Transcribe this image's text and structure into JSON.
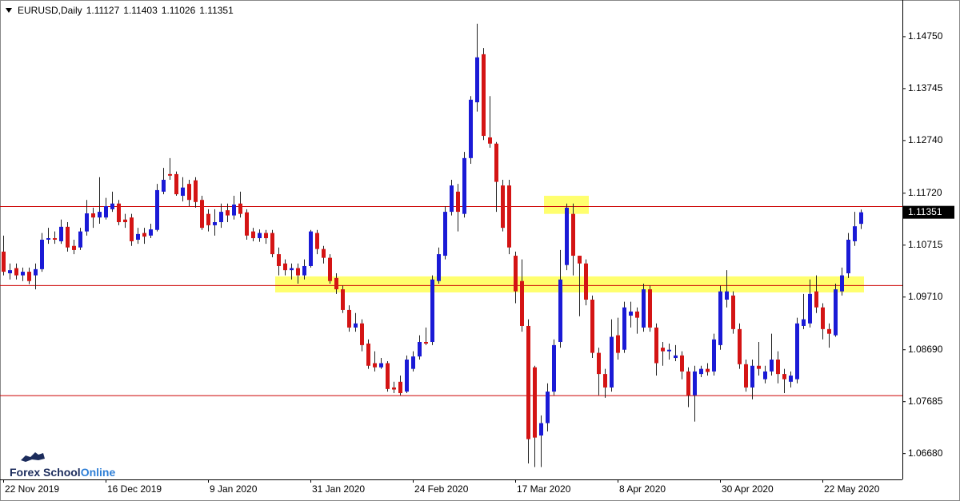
{
  "chart_data": {
    "type": "candlestick",
    "title": "EURUSD,Daily",
    "categories": [
      "22 Nov 2019",
      null,
      null,
      null,
      null,
      null,
      null,
      null,
      null,
      null,
      null,
      null,
      null,
      null,
      null,
      null,
      "16 Dec 2019",
      null,
      null,
      null,
      null,
      null,
      null,
      null,
      null,
      null,
      null,
      null,
      null,
      null,
      null,
      null,
      "9 Jan 2020",
      null,
      null,
      null,
      null,
      null,
      null,
      null,
      null,
      null,
      null,
      null,
      null,
      null,
      null,
      null,
      "31 Jan 2020",
      null,
      null,
      null,
      null,
      null,
      null,
      null,
      null,
      null,
      null,
      null,
      null,
      null,
      null,
      null,
      "24 Feb 2020",
      null,
      null,
      null,
      null,
      null,
      null,
      null,
      null,
      null,
      null,
      null,
      null,
      null,
      null,
      null,
      "17 Mar 2020",
      null,
      null,
      null,
      null,
      null,
      null,
      null,
      null,
      null,
      null,
      null,
      null,
      null,
      null,
      null,
      "8 Apr 2020",
      null,
      null,
      null,
      null,
      null,
      null,
      null,
      null,
      null,
      null,
      null,
      null,
      null,
      null,
      null,
      "30 Apr 2020",
      null,
      null,
      null,
      null,
      null,
      null,
      null,
      null,
      null,
      null,
      null,
      null,
      null,
      null,
      null,
      "22 May 2020",
      null,
      null,
      null,
      null,
      null,
      null
    ],
    "open": [
      1.1059,
      1.1017,
      1.1027,
      1.1013,
      1.102,
      1.1013,
      1.1025,
      1.1082,
      1.1085,
      1.1079,
      1.1107,
      1.107,
      1.1067,
      1.1098,
      1.1133,
      1.1125,
      1.1125,
      1.1141,
      1.1152,
      1.1121,
      1.1125,
      1.1082,
      1.1095,
      1.109,
      1.1101,
      1.1175,
      1.1209,
      1.1209,
      1.1167,
      1.119,
      1.1197,
      1.1159,
      1.1132,
      1.111,
      1.1116,
      1.1139,
      1.1129,
      1.1152,
      1.1135,
      1.1098,
      1.1085,
      1.1095,
      1.1095,
      1.1054,
      1.1036,
      1.1023,
      1.1027,
      1.1013,
      1.1031,
      1.1095,
      1.1064,
      1.1047,
      1.1008,
      1.0986,
      1.0946,
      1.0912,
      1.092,
      1.0881,
      1.0843,
      1.0835,
      1.0843,
      1.0796,
      1.0807,
      1.0788,
      1.0832,
      1.0856,
      1.0884,
      1.0884,
      1.1002,
      1.1051,
      1.1136,
      1.1175,
      1.1132,
      1.124,
      1.1348,
      1.1441,
      1.128,
      1.1268,
      1.1187,
      1.1187,
      1.1051,
      1.1002,
      1.0915,
      1.0835,
      1.0703,
      1.0727,
      1.0788,
      1.0884,
      1.1033,
      1.1132,
      1.1051,
      1.1036,
      1.0966,
      1.0863,
      1.0822,
      1.0796,
      1.0897,
      1.0869,
      1.0935,
      1.0943,
      1.0912,
      1.0986,
      1.0912,
      1.0873,
      1.0866,
      1.0853,
      1.0858,
      1.0827,
      1.0781,
      1.0822,
      1.0832,
      1.0827,
      1.0878,
      1.0966,
      1.0974,
      1.0909,
      1.0841,
      1.0796,
      1.0838,
      1.0812,
      1.0827,
      1.085,
      1.0822,
      1.0807,
      1.0812,
      1.0915,
      1.092,
      1.0982,
      1.0951,
      1.0909,
      1.0897,
      1.0982,
      1.1017,
      1.1079,
      1.11127
    ],
    "high": [
      1.109,
      1.1036,
      1.1036,
      1.1028,
      1.1028,
      1.1036,
      1.1095,
      1.1105,
      1.1098,
      1.1121,
      1.1116,
      1.1082,
      1.1105,
      1.1159,
      1.1144,
      1.1203,
      1.1163,
      1.1175,
      1.1159,
      1.1132,
      1.1132,
      1.1105,
      1.1105,
      1.1113,
      1.119,
      1.1221,
      1.124,
      1.1214,
      1.1203,
      1.1198,
      1.1203,
      1.1167,
      1.1141,
      1.1141,
      1.1152,
      1.1152,
      1.1167,
      1.1175,
      1.1141,
      1.1105,
      1.1102,
      1.1101,
      1.1101,
      1.1067,
      1.1044,
      1.1036,
      1.1036,
      1.1044,
      1.1101,
      1.1101,
      1.107,
      1.1054,
      1.1017,
      1.0993,
      1.0955,
      1.094,
      1.0928,
      1.0889,
      1.0866,
      1.0853,
      1.0847,
      1.0807,
      1.0819,
      1.0858,
      1.0866,
      1.0897,
      1.0912,
      1.1013,
      1.1067,
      1.1147,
      1.1198,
      1.119,
      1.1252,
      1.136,
      1.15,
      1.1453,
      1.136,
      1.1271,
      1.1198,
      1.1198,
      1.1059,
      1.1044,
      1.0928,
      1.0838,
      1.0742,
      1.0804,
      1.0889,
      1.1062,
      1.1152,
      1.1152,
      1.1051,
      1.1044,
      1.0974,
      1.0873,
      1.0832,
      1.0928,
      1.0931,
      1.0962,
      1.0962,
      1.0951,
      1.0997,
      1.0993,
      1.092,
      1.0884,
      1.0881,
      1.0878,
      1.0866,
      1.0835,
      1.0838,
      1.0838,
      1.0843,
      1.09,
      1.0993,
      1.1023,
      1.0982,
      1.092,
      1.085,
      1.085,
      1.0884,
      1.0838,
      1.09,
      1.0866,
      1.0832,
      1.0827,
      1.0931,
      1.0977,
      1.1005,
      1.1013,
      1.0959,
      1.092,
      1.0997,
      1.1028,
      1.1095,
      1.1136,
      1.11403
    ],
    "low": [
      1.1013,
      1.1005,
      1.1005,
      1.1002,
      1.0996,
      1.0986,
      1.102,
      1.1074,
      1.1074,
      1.1074,
      1.1059,
      1.1054,
      1.1062,
      1.109,
      1.1105,
      1.1113,
      1.1121,
      1.1136,
      1.111,
      1.1105,
      1.107,
      1.1074,
      1.1074,
      1.1085,
      1.1098,
      1.117,
      1.1198,
      1.1167,
      1.1156,
      1.1147,
      1.1144,
      1.1101,
      1.1098,
      1.109,
      1.1105,
      1.1116,
      1.1121,
      1.1125,
      1.1082,
      1.1079,
      1.1078,
      1.1074,
      1.1048,
      1.1013,
      1.1013,
      1.1005,
      1.0997,
      1.1005,
      1.1028,
      1.1054,
      1.1036,
      1.0997,
      1.0977,
      1.094,
      1.0904,
      1.0904,
      1.0866,
      1.0832,
      1.0827,
      1.0832,
      1.0788,
      1.0785,
      1.0781,
      1.0785,
      1.0827,
      1.085,
      1.0878,
      1.0878,
      1.0997,
      1.1044,
      1.1129,
      1.1098,
      1.1125,
      1.1229,
      1.133,
      1.1275,
      1.126,
      1.1136,
      1.1098,
      1.1054,
      1.0959,
      1.0904,
      1.0649,
      1.0642,
      1.0642,
      1.0711,
      1.0781,
      1.0873,
      1.1023,
      1.1013,
      1.0934,
      1.0955,
      1.0853,
      1.0781,
      1.0776,
      1.0788,
      1.085,
      1.0863,
      1.0912,
      1.09,
      1.0904,
      1.0904,
      1.0819,
      1.0838,
      1.085,
      1.0847,
      1.0812,
      1.0758,
      1.073,
      1.0816,
      1.0819,
      1.0819,
      1.0869,
      1.0951,
      1.09,
      1.0832,
      1.0788,
      1.0773,
      1.0819,
      1.0804,
      1.0819,
      1.0804,
      1.0785,
      1.0796,
      1.0804,
      1.0909,
      1.0912,
      1.094,
      1.0889,
      1.0873,
      1.0894,
      1.0974,
      1.1008,
      1.107,
      1.11026
    ],
    "close": [
      1.102,
      1.1023,
      1.1013,
      1.102,
      1.1002,
      1.1025,
      1.1082,
      1.1085,
      1.1082,
      1.1107,
      1.1067,
      1.1062,
      1.1098,
      1.1133,
      1.1125,
      1.1136,
      1.1147,
      1.1152,
      1.1116,
      1.1116,
      1.1079,
      1.1093,
      1.1088,
      1.1102,
      1.1178,
      1.1198,
      1.1206,
      1.117,
      1.1183,
      1.1159,
      1.1155,
      1.1105,
      1.111,
      1.1116,
      1.1136,
      1.1129,
      1.115,
      1.1132,
      1.109,
      1.1085,
      1.1095,
      1.1085,
      1.1054,
      1.1031,
      1.1023,
      1.1027,
      1.1013,
      1.1031,
      1.1098,
      1.1064,
      1.1047,
      1.1002,
      1.0986,
      1.0946,
      1.0912,
      1.092,
      1.0878,
      1.0838,
      1.0835,
      1.0843,
      1.0793,
      1.0792,
      1.0785,
      1.085,
      1.0856,
      1.0884,
      1.0881,
      1.1005,
      1.1054,
      1.1136,
      1.1187,
      1.1136,
      1.124,
      1.1353,
      1.1435,
      1.1283,
      1.1268,
      1.1194,
      1.1105,
      1.1067,
      1.0982,
      1.0915,
      1.0696,
      1.0699,
      1.0727,
      1.0788,
      1.0878,
      1.1005,
      1.1144,
      1.1051,
      1.1036,
      1.0966,
      1.0863,
      1.0822,
      1.0796,
      1.0894,
      1.0863,
      1.0951,
      1.0943,
      1.0931,
      1.0986,
      1.0912,
      1.0843,
      1.0866,
      1.0869,
      1.0858,
      1.0827,
      1.0781,
      1.0827,
      1.0832,
      1.0826,
      1.0889,
      1.0982,
      1.0982,
      1.0909,
      1.0841,
      1.0796,
      1.0838,
      1.0832,
      1.0827,
      1.085,
      1.0822,
      1.0812,
      1.0819,
      1.092,
      1.0928,
      1.0977,
      1.0951,
      1.0909,
      1.09,
      1.0986,
      1.1013,
      1.1082,
      1.1108,
      1.11351
    ],
    "up_color": "#1a1ad6",
    "down_color": "#d41414",
    "wick_color": "#222222",
    "ylim": [
      1.0618,
      1.1546
    ],
    "yticks": [
      {
        "value": 1.1475,
        "label": "1.14750"
      },
      {
        "value": 1.13745,
        "label": "1.13745"
      },
      {
        "value": 1.1274,
        "label": "1.12740"
      },
      {
        "value": 1.1172,
        "label": "1.11720"
      },
      {
        "value": 1.10715,
        "label": "1.10715"
      },
      {
        "value": 1.0971,
        "label": "1.09710"
      },
      {
        "value": 1.0869,
        "label": "1.08690"
      },
      {
        "value": 1.07685,
        "label": "1.07685"
      },
      {
        "value": 1.0668,
        "label": "1.06680"
      }
    ],
    "levels": [
      1.1147,
      1.0994,
      1.0781
    ],
    "level_color": "#cc0000",
    "zones": [
      {
        "low": 1.098,
        "high": 1.1011,
        "start": 43,
        "end": 134
      },
      {
        "low": 1.1132,
        "high": 1.1167,
        "start": 85,
        "end": 91
      }
    ],
    "zone_color": "#ffff55"
  },
  "logo": {
    "brand": "Forex School",
    "suffix": "Online"
  }
}
